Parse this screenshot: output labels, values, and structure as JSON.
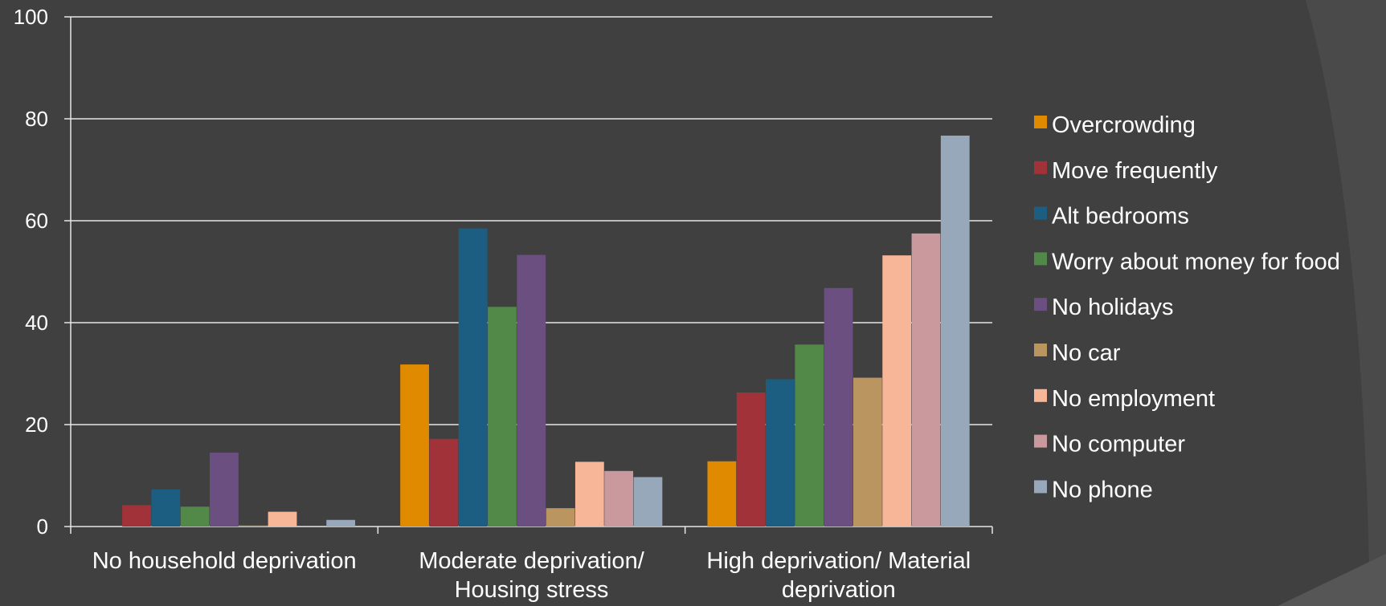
{
  "chart_data": {
    "type": "bar",
    "categories": [
      [
        "No household deprivation"
      ],
      [
        "Moderate deprivation/",
        "Housing stress"
      ],
      [
        "High deprivation/ Material",
        "deprivation"
      ]
    ],
    "ylim": [
      0,
      100
    ],
    "yticks": [
      0,
      20,
      40,
      60,
      80,
      100
    ],
    "grid": true,
    "legend_position": "right",
    "series": [
      {
        "name": "Overcrowding",
        "color": "#E08A00",
        "values": [
          0,
          31.8,
          12.8
        ]
      },
      {
        "name": "Move frequently",
        "color": "#A2323A",
        "values": [
          4.2,
          17.2,
          26.3
        ]
      },
      {
        "name": "Alt bedrooms",
        "color": "#1C5E82",
        "values": [
          7.3,
          58.5,
          28.9
        ]
      },
      {
        "name": "Worry about money for food",
        "color": "#528848",
        "values": [
          3.9,
          43.1,
          35.7
        ]
      },
      {
        "name": "No holidays",
        "color": "#6A4F80",
        "values": [
          14.5,
          53.3,
          46.8
        ]
      },
      {
        "name": "No car",
        "color": "#BA955F",
        "values": [
          0.2,
          3.6,
          29.2
        ]
      },
      {
        "name": "No employment",
        "color": "#F8B698",
        "values": [
          2.9,
          12.7,
          53.2
        ]
      },
      {
        "name": "No computer",
        "color": "#C9999D",
        "values": [
          0,
          10.9,
          57.5
        ]
      },
      {
        "name": "No phone",
        "color": "#97A8BA",
        "values": [
          1.3,
          9.7,
          76.7
        ]
      }
    ]
  }
}
